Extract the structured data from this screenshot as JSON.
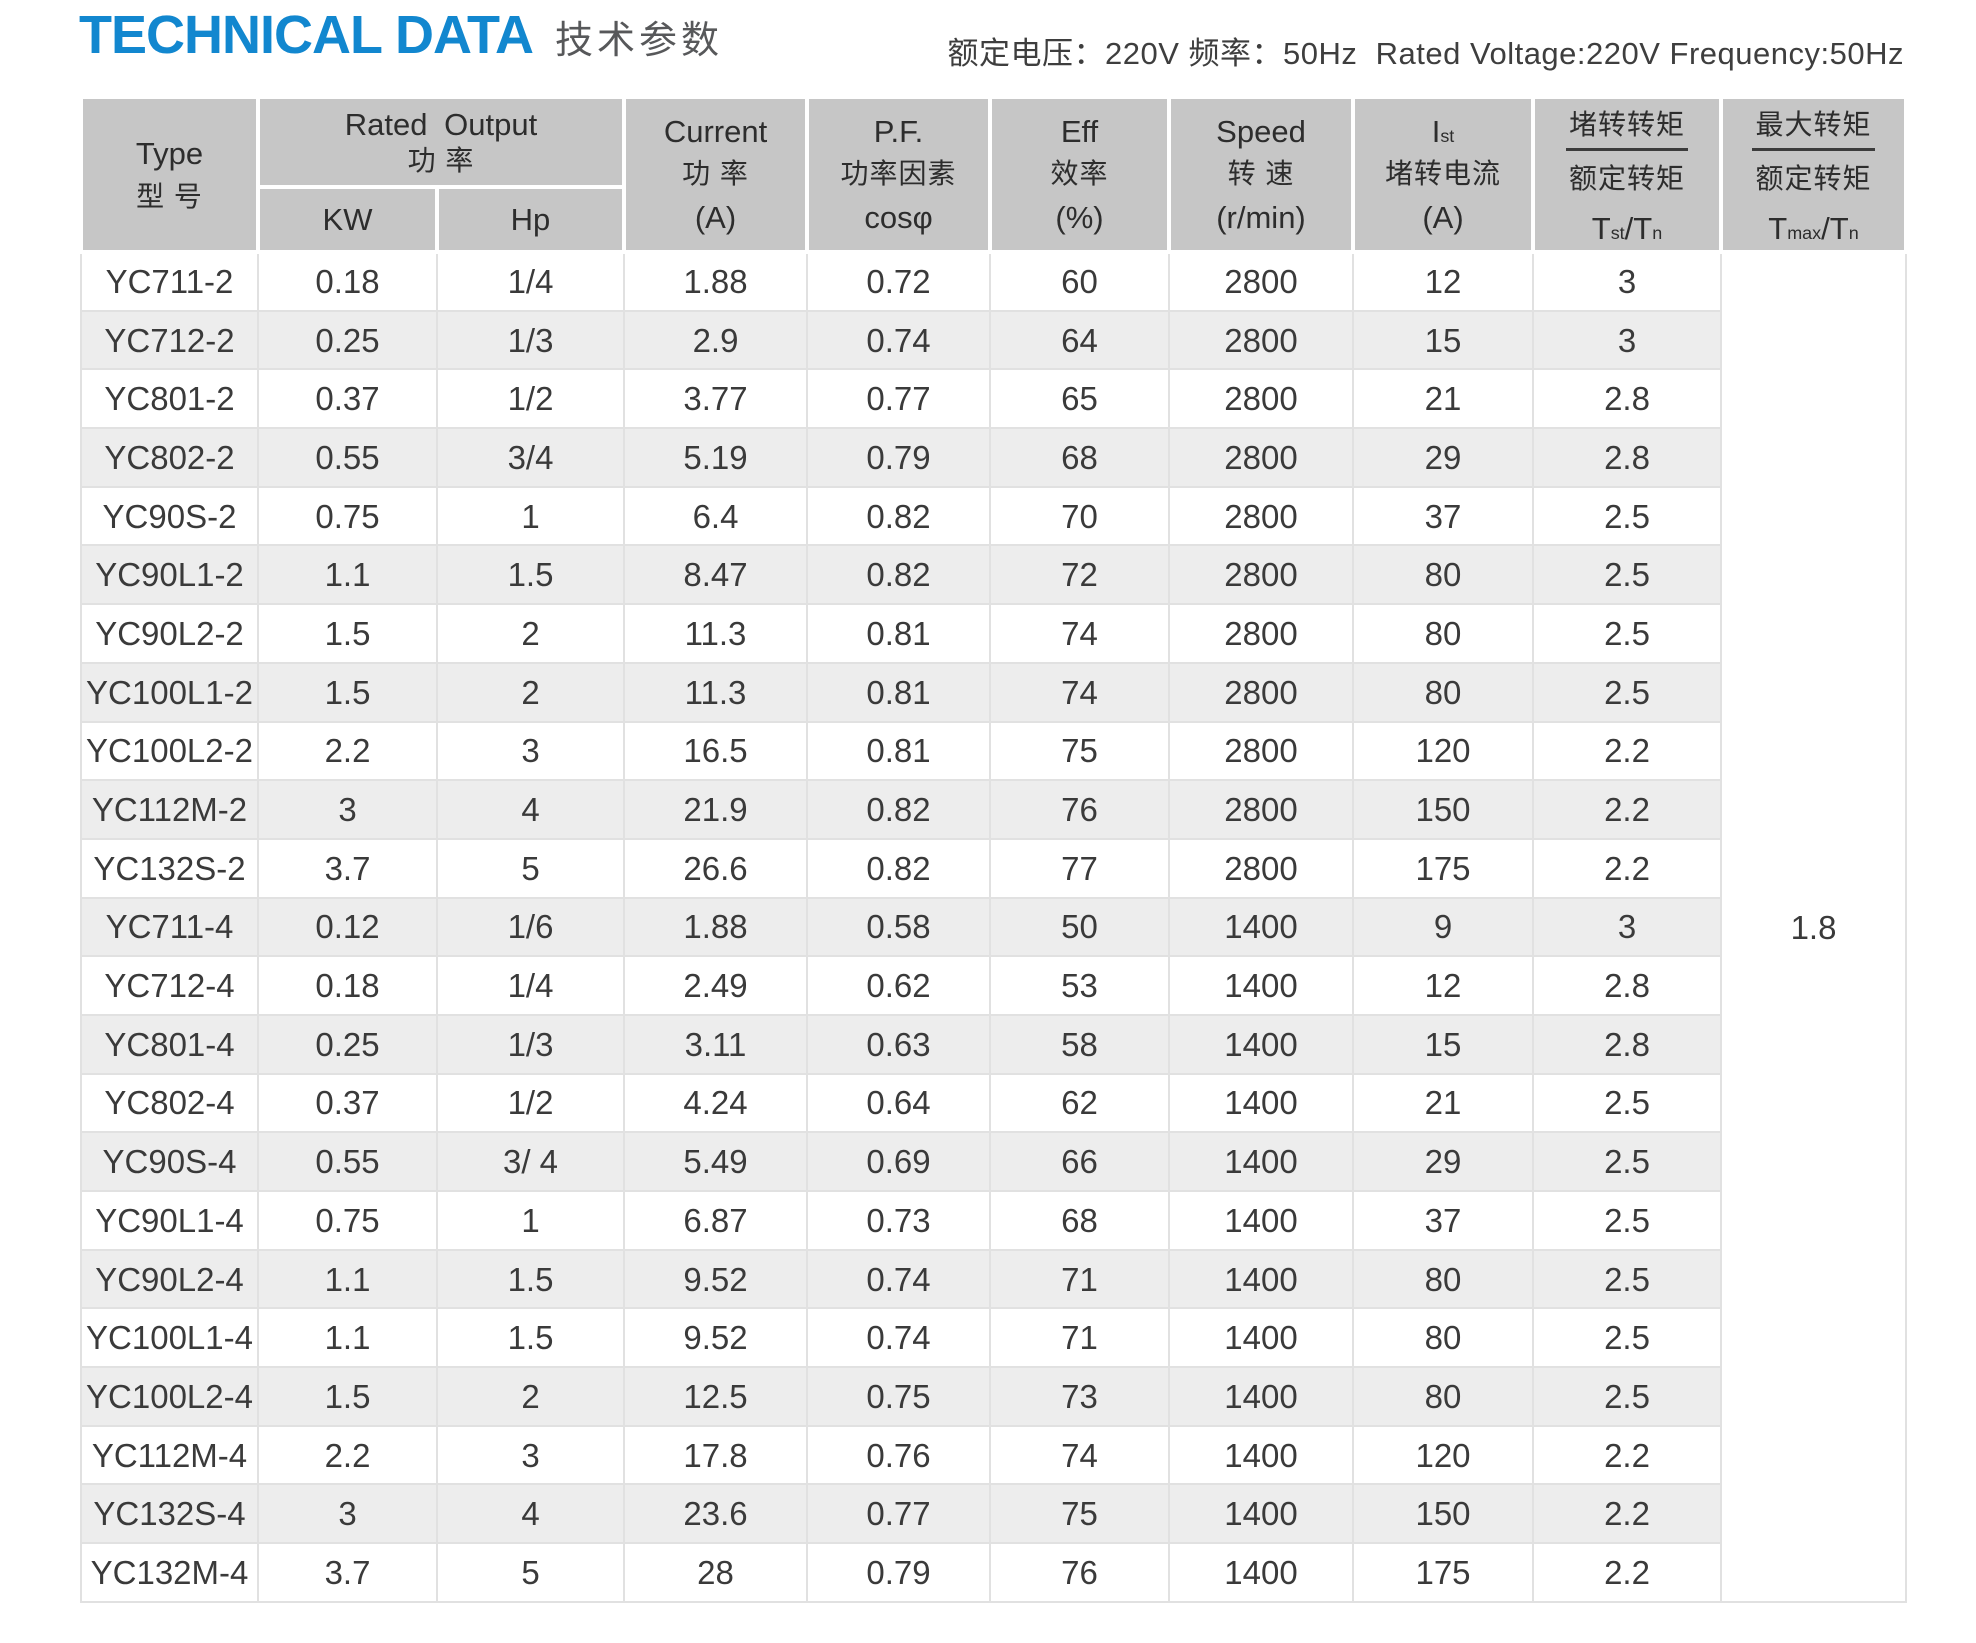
{
  "page": {
    "title": "TECHNICAL DATA",
    "title_cn": "技术参数",
    "rating_note": "额定电压：220V 频率：50Hz  Rated Voltage:220V Frequency:50Hz"
  },
  "table": {
    "header": {
      "type": {
        "en": "Type",
        "cn": "型 号"
      },
      "rated_output": {
        "en": "Rated Output",
        "cn": "功 率"
      },
      "kw": "KW",
      "hp": "Hp",
      "current": {
        "en": "Current",
        "cn": "功 率",
        "unit": "(A)"
      },
      "pf": {
        "en": "P.F.",
        "cn": "功率因素",
        "formula": "cosφ"
      },
      "eff": {
        "en": "Eff",
        "cn": "效率",
        "unit": "(%)"
      },
      "speed": {
        "en": "Speed",
        "cn": "转 速",
        "unit": "(r/min)"
      },
      "ist": {
        "sym": "I",
        "sym_sub": "st",
        "cn": "堵转电流",
        "unit": "(A)"
      },
      "tst_tn": {
        "num": "堵转转矩",
        "den": "额定转矩",
        "t": "T",
        "t_sub": "st",
        "slash": "/",
        "t2": "T",
        "t2_sub": "n"
      },
      "tmax_tn": {
        "num": "最大转矩",
        "den": "额定转矩",
        "t": "T",
        "t_sub": "max",
        "slash": "/",
        "t2": "T",
        "t2_sub": "n"
      }
    },
    "tmax_merged_value": "1.8",
    "rows": [
      {
        "type": "YC711-2",
        "kw": "0.18",
        "hp": "1/4",
        "current": "1.88",
        "pf": "0.72",
        "eff": "60",
        "speed": "2800",
        "ist": "12",
        "tst": "3"
      },
      {
        "type": "YC712-2",
        "kw": "0.25",
        "hp": "1/3",
        "current": "2.9",
        "pf": "0.74",
        "eff": "64",
        "speed": "2800",
        "ist": "15",
        "tst": "3"
      },
      {
        "type": "YC801-2",
        "kw": "0.37",
        "hp": "1/2",
        "current": "3.77",
        "pf": "0.77",
        "eff": "65",
        "speed": "2800",
        "ist": "21",
        "tst": "2.8"
      },
      {
        "type": "YC802-2",
        "kw": "0.55",
        "hp": "3/4",
        "current": "5.19",
        "pf": "0.79",
        "eff": "68",
        "speed": "2800",
        "ist": "29",
        "tst": "2.8"
      },
      {
        "type": "YC90S-2",
        "kw": "0.75",
        "hp": "1",
        "current": "6.4",
        "pf": "0.82",
        "eff": "70",
        "speed": "2800",
        "ist": "37",
        "tst": "2.5"
      },
      {
        "type": "YC90L1-2",
        "kw": "1.1",
        "hp": "1.5",
        "current": "8.47",
        "pf": "0.82",
        "eff": "72",
        "speed": "2800",
        "ist": "80",
        "tst": "2.5"
      },
      {
        "type": "YC90L2-2",
        "kw": "1.5",
        "hp": "2",
        "current": "11.3",
        "pf": "0.81",
        "eff": "74",
        "speed": "2800",
        "ist": "80",
        "tst": "2.5"
      },
      {
        "type": "YC100L1-2",
        "kw": "1.5",
        "hp": "2",
        "current": "11.3",
        "pf": "0.81",
        "eff": "74",
        "speed": "2800",
        "ist": "80",
        "tst": "2.5"
      },
      {
        "type": "YC100L2-2",
        "kw": "2.2",
        "hp": "3",
        "current": "16.5",
        "pf": "0.81",
        "eff": "75",
        "speed": "2800",
        "ist": "120",
        "tst": "2.2"
      },
      {
        "type": "YC112M-2",
        "kw": "3",
        "hp": "4",
        "current": "21.9",
        "pf": "0.82",
        "eff": "76",
        "speed": "2800",
        "ist": "150",
        "tst": "2.2"
      },
      {
        "type": "YC132S-2",
        "kw": "3.7",
        "hp": "5",
        "current": "26.6",
        "pf": "0.82",
        "eff": "77",
        "speed": "2800",
        "ist": "175",
        "tst": "2.2"
      },
      {
        "type": "YC711-4",
        "kw": "0.12",
        "hp": "1/6",
        "current": "1.88",
        "pf": "0.58",
        "eff": "50",
        "speed": "1400",
        "ist": "9",
        "tst": "3"
      },
      {
        "type": "YC712-4",
        "kw": "0.18",
        "hp": "1/4",
        "current": "2.49",
        "pf": "0.62",
        "eff": "53",
        "speed": "1400",
        "ist": "12",
        "tst": "2.8"
      },
      {
        "type": "YC801-4",
        "kw": "0.25",
        "hp": "1/3",
        "current": "3.11",
        "pf": "0.63",
        "eff": "58",
        "speed": "1400",
        "ist": "15",
        "tst": "2.8"
      },
      {
        "type": "YC802-4",
        "kw": "0.37",
        "hp": "1/2",
        "current": "4.24",
        "pf": "0.64",
        "eff": "62",
        "speed": "1400",
        "ist": "21",
        "tst": "2.5"
      },
      {
        "type": "YC90S-4",
        "kw": "0.55",
        "hp": "3/ 4",
        "current": "5.49",
        "pf": "0.69",
        "eff": "66",
        "speed": "1400",
        "ist": "29",
        "tst": "2.5"
      },
      {
        "type": "YC90L1-4",
        "kw": "0.75",
        "hp": "1",
        "current": "6.87",
        "pf": "0.73",
        "eff": "68",
        "speed": "1400",
        "ist": "37",
        "tst": "2.5"
      },
      {
        "type": "YC90L2-4",
        "kw": "1.1",
        "hp": "1.5",
        "current": "9.52",
        "pf": "0.74",
        "eff": "71",
        "speed": "1400",
        "ist": "80",
        "tst": "2.5"
      },
      {
        "type": "YC100L1-4",
        "kw": "1.1",
        "hp": "1.5",
        "current": "9.52",
        "pf": "0.74",
        "eff": "71",
        "speed": "1400",
        "ist": "80",
        "tst": "2.5"
      },
      {
        "type": "YC100L2-4",
        "kw": "1.5",
        "hp": "2",
        "current": "12.5",
        "pf": "0.75",
        "eff": "73",
        "speed": "1400",
        "ist": "80",
        "tst": "2.5"
      },
      {
        "type": "YC112M-4",
        "kw": "2.2",
        "hp": "3",
        "current": "17.8",
        "pf": "0.76",
        "eff": "74",
        "speed": "1400",
        "ist": "120",
        "tst": "2.2"
      },
      {
        "type": "YC132S-4",
        "kw": "3",
        "hp": "4",
        "current": "23.6",
        "pf": "0.77",
        "eff": "75",
        "speed": "1400",
        "ist": "150",
        "tst": "2.2"
      },
      {
        "type": "YC132M-4",
        "kw": "3.7",
        "hp": "5",
        "current": "28",
        "pf": "0.79",
        "eff": "76",
        "speed": "1400",
        "ist": "175",
        "tst": "2.2"
      }
    ]
  }
}
